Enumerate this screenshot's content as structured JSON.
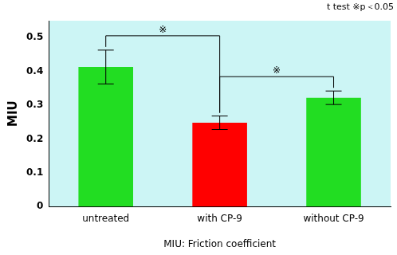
{
  "chart_data": {
    "type": "bar",
    "annotation": "t test ※p＜0.05",
    "y_label": "MIU",
    "x_label": "MIU: Friction coefficient",
    "categories": [
      "untreated",
      "with CP-9",
      "without CP-9"
    ],
    "values": [
      0.413,
      0.248,
      0.322
    ],
    "errors": [
      0.05,
      0.02,
      0.02
    ],
    "colors": [
      "#22dd22",
      "#ff0000",
      "#22dd22"
    ],
    "significance": [
      {
        "pair": [
          "untreated",
          "with CP-9"
        ],
        "label": "※"
      },
      {
        "pair": [
          "with CP-9",
          "without CP-9"
        ],
        "label": "※"
      }
    ],
    "ylim": [
      0,
      0.55
    ],
    "yticks": [
      0,
      0.1,
      0.2,
      0.3,
      0.4,
      0.5
    ],
    "grid": false
  }
}
